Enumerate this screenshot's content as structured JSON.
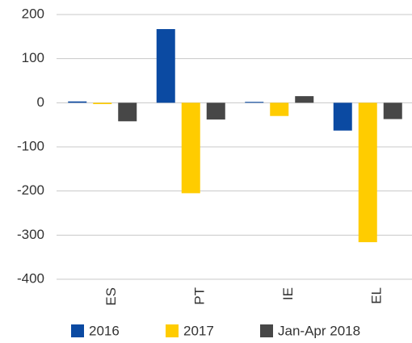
{
  "chart_data": {
    "type": "bar",
    "categories": [
      "ES",
      "PT",
      "IE",
      "EL"
    ],
    "series": [
      {
        "name": "2016",
        "color": "#0b4aa2",
        "values": [
          3,
          167,
          2,
          -63
        ]
      },
      {
        "name": "2017",
        "color": "#ffcc00",
        "values": [
          -3,
          -205,
          -30,
          -316
        ]
      },
      {
        "name": "Jan-Apr 2018",
        "color": "#474747",
        "values": [
          -42,
          -38,
          15,
          -37
        ]
      }
    ],
    "ylim": [
      -400,
      200
    ],
    "yticks": [
      -400,
      -300,
      -200,
      -100,
      0,
      100,
      200
    ],
    "grid": true,
    "legend": "bottom"
  }
}
